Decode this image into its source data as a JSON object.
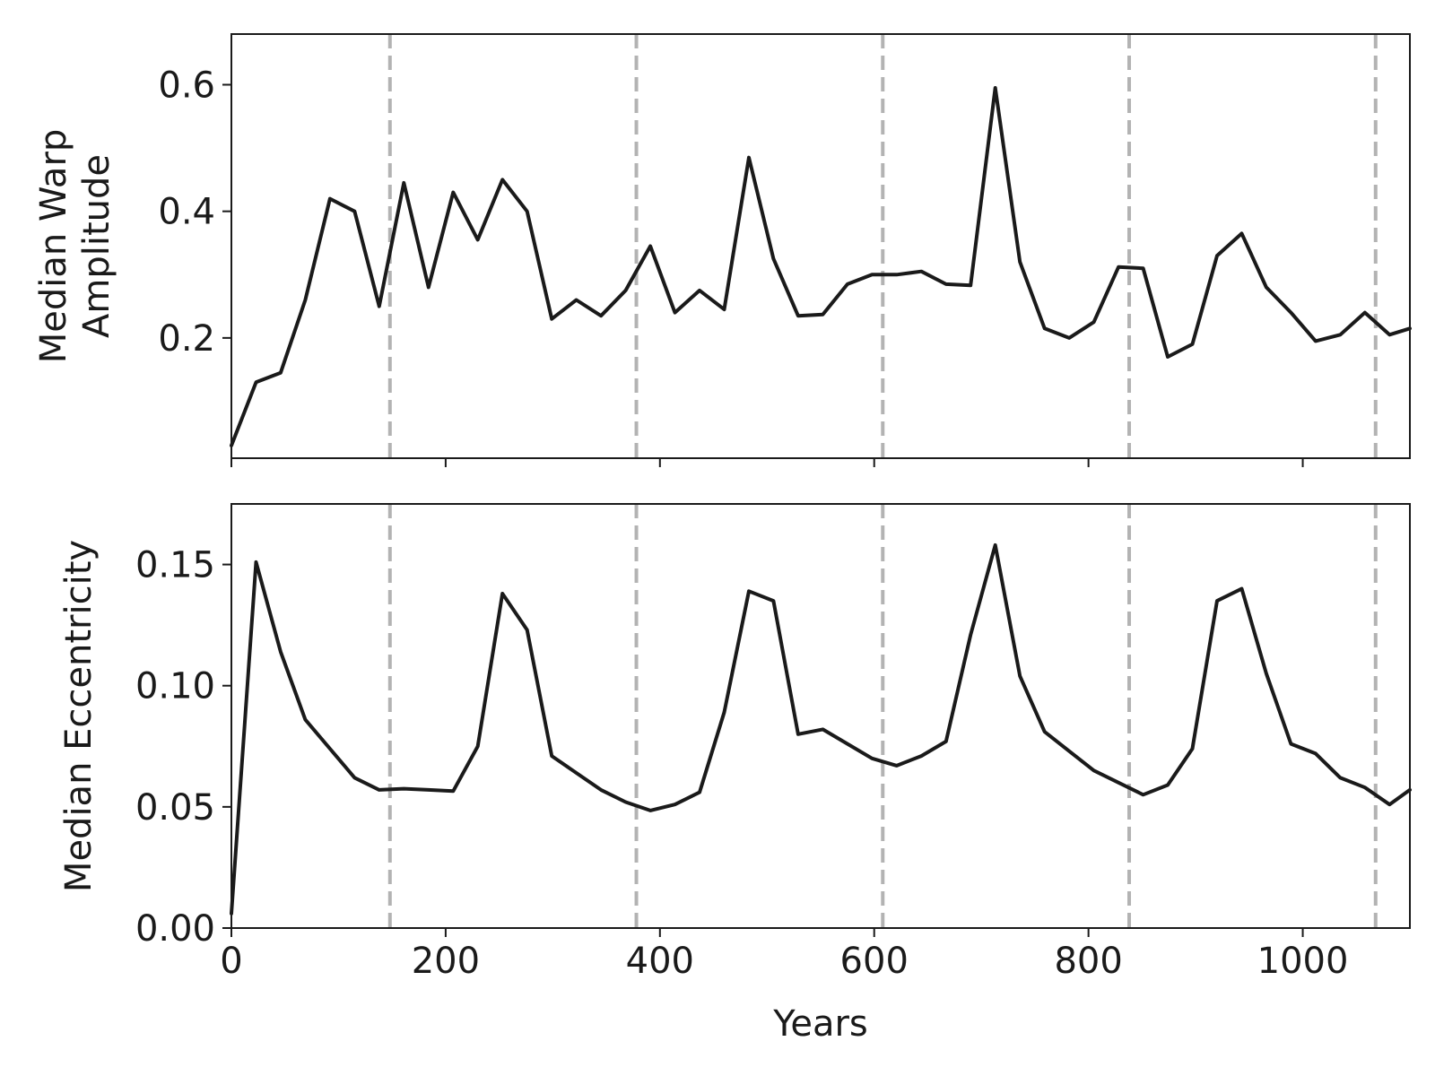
{
  "chart_data": [
    {
      "type": "line",
      "title": "",
      "xlabel": "",
      "ylabel_lines": [
        "Median Warp",
        "Amplitude"
      ],
      "xlim": [
        0,
        1100
      ],
      "ylim": [
        0.01,
        0.68
      ],
      "yticks": [
        0.2,
        0.4,
        0.6
      ],
      "ytick_labels": [
        "0.2",
        "0.4",
        "0.6"
      ],
      "xticks": [
        0,
        200,
        400,
        600,
        800,
        1000
      ],
      "xtick_labels_shown": false,
      "line_color": "#1a1a1a",
      "grid": false,
      "vlines": [
        148,
        378,
        608,
        838,
        1068
      ],
      "vline_color": "#b3b3b3",
      "series": [
        {
          "x": [
            0,
            23,
            46,
            69,
            92,
            115,
            138,
            161,
            184,
            207,
            230,
            253,
            276,
            299,
            322,
            345,
            368,
            391,
            414,
            437,
            460,
            483,
            506,
            529,
            552,
            575,
            598,
            621,
            644,
            667,
            690,
            713,
            736,
            759,
            782,
            805,
            828,
            851,
            874,
            897,
            920,
            943,
            966,
            989,
            1012,
            1035,
            1058,
            1081,
            1100
          ],
          "y": [
            0.03,
            0.13,
            0.145,
            0.26,
            0.42,
            0.4,
            0.25,
            0.445,
            0.28,
            0.43,
            0.355,
            0.45,
            0.4,
            0.23,
            0.26,
            0.235,
            0.275,
            0.345,
            0.24,
            0.275,
            0.245,
            0.485,
            0.325,
            0.235,
            0.237,
            0.285,
            0.3,
            0.3,
            0.305,
            0.285,
            0.283,
            0.595,
            0.32,
            0.215,
            0.2,
            0.225,
            0.312,
            0.31,
            0.17,
            0.19,
            0.33,
            0.365,
            0.28,
            0.24,
            0.195,
            0.205,
            0.24,
            0.205,
            0.215
          ]
        }
      ]
    },
    {
      "type": "line",
      "title": "",
      "xlabel": "Years",
      "ylabel_lines": [
        "Median Eccentricity"
      ],
      "xlim": [
        0,
        1100
      ],
      "ylim": [
        0.0,
        0.175
      ],
      "yticks": [
        0.0,
        0.05,
        0.1,
        0.15
      ],
      "ytick_labels": [
        "0.00",
        "0.05",
        "0.10",
        "0.15"
      ],
      "xticks": [
        0,
        200,
        400,
        600,
        800,
        1000
      ],
      "xtick_labels": [
        "0",
        "200",
        "400",
        "600",
        "800",
        "1000"
      ],
      "line_color": "#1a1a1a",
      "grid": false,
      "vlines": [
        148,
        378,
        608,
        838,
        1068
      ],
      "vline_color": "#b3b3b3",
      "series": [
        {
          "x": [
            0,
            23,
            46,
            69,
            92,
            115,
            138,
            161,
            184,
            207,
            230,
            253,
            276,
            299,
            322,
            345,
            368,
            391,
            414,
            437,
            460,
            483,
            506,
            529,
            552,
            575,
            598,
            621,
            644,
            667,
            690,
            713,
            736,
            759,
            782,
            805,
            828,
            851,
            874,
            897,
            920,
            943,
            966,
            989,
            1012,
            1035,
            1058,
            1081,
            1100
          ],
          "y": [
            0.006,
            0.151,
            0.114,
            0.086,
            0.074,
            0.062,
            0.057,
            0.0575,
            0.057,
            0.0565,
            0.075,
            0.138,
            0.123,
            0.071,
            0.064,
            0.057,
            0.052,
            0.0485,
            0.051,
            0.056,
            0.089,
            0.139,
            0.135,
            0.08,
            0.082,
            0.076,
            0.07,
            0.067,
            0.071,
            0.077,
            0.121,
            0.158,
            0.104,
            0.081,
            0.073,
            0.065,
            0.06,
            0.055,
            0.059,
            0.074,
            0.135,
            0.14,
            0.105,
            0.076,
            0.072,
            0.062,
            0.058,
            0.051,
            0.057
          ]
        }
      ]
    }
  ]
}
